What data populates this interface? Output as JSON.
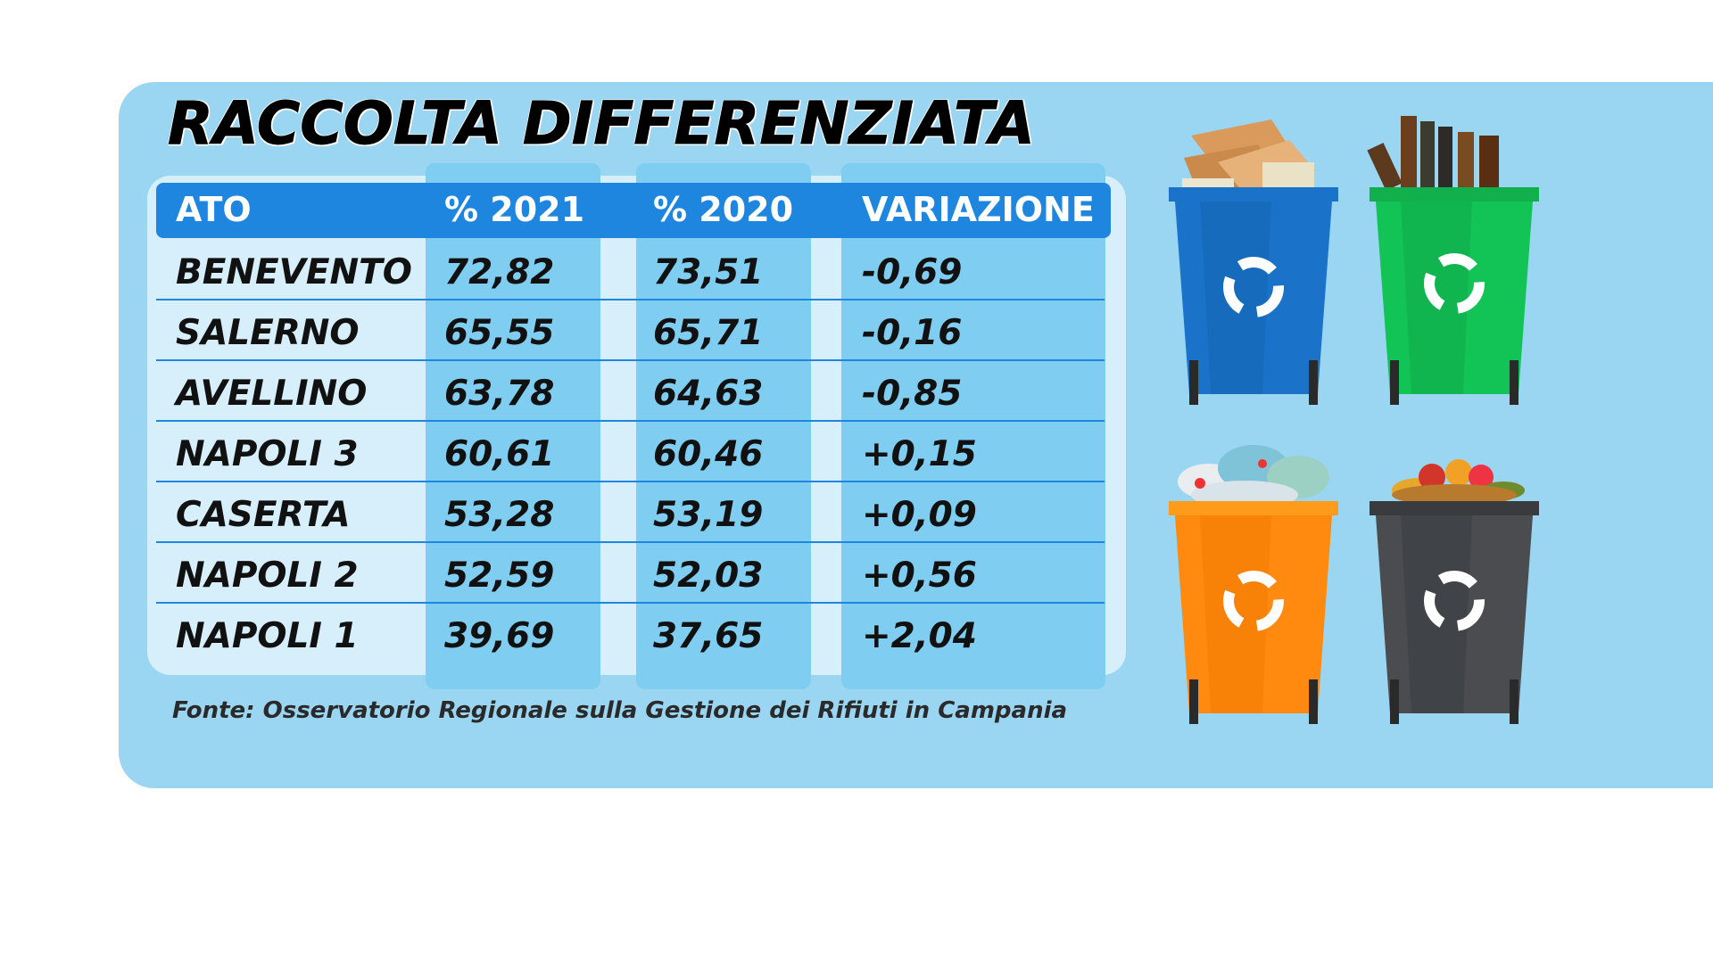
{
  "title": "RACCOLTA DIFFERENZIATA",
  "source": "Fonte: Osservatorio Regionale sulla Gestione dei Rifiuti in Campania",
  "colors": {
    "panel": "#9ad6f2",
    "header": "#1f86e0",
    "column_band": "#7fcdf0",
    "table_bg": "#d6effb",
    "bin_blue": "#1a73c9",
    "bin_green": "#12b04c",
    "bin_orange": "#ff8a0f",
    "bin_gray": "#4a4c50"
  },
  "icons": [
    "recycle-bin-blue-paper-icon",
    "recycle-bin-green-glass-icon",
    "recycle-bin-orange-plastic-icon",
    "recycle-bin-gray-organic-icon"
  ],
  "chart_data": {
    "type": "table",
    "columns": [
      "ATO",
      "% 2021",
      "% 2020",
      "VARIAZIONE"
    ],
    "rows": [
      [
        "BENEVENTO",
        "72,82",
        "73,51",
        "-0,69"
      ],
      [
        "SALERNO",
        "65,55",
        "65,71",
        "-0,16"
      ],
      [
        "AVELLINO",
        "63,78",
        "64,63",
        "-0,85"
      ],
      [
        "NAPOLI 3",
        "60,61",
        "60,46",
        "+0,15"
      ],
      [
        "CASERTA",
        "53,28",
        "53,19",
        "+0,09"
      ],
      [
        "NAPOLI 2",
        "52,59",
        "52,03",
        "+0,56"
      ],
      [
        "NAPOLI 1",
        "39,69",
        "37,65",
        "+2,04"
      ]
    ]
  }
}
